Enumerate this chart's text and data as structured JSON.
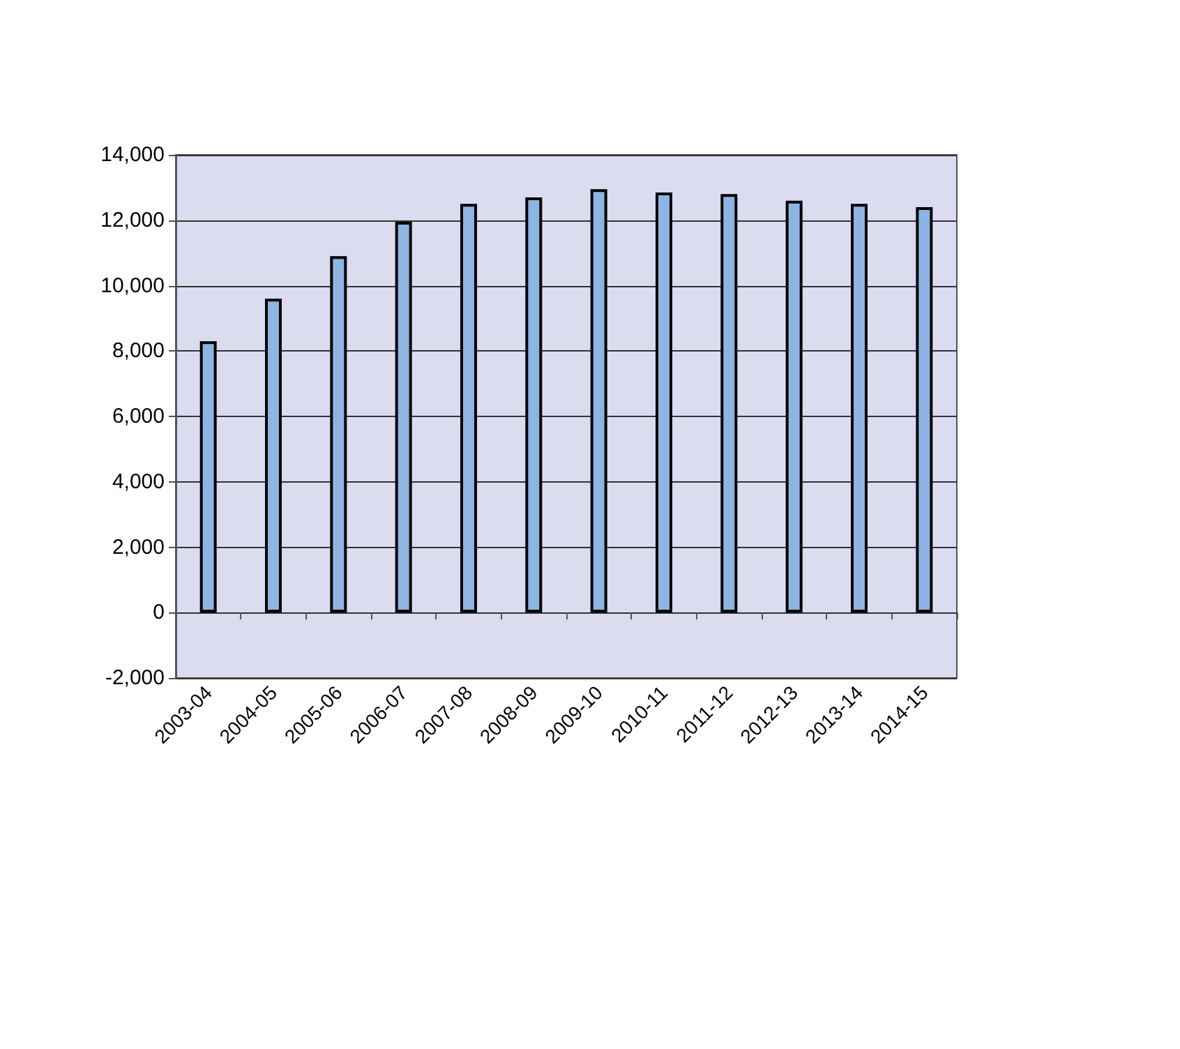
{
  "chart_data": {
    "type": "bar",
    "categories": [
      "2003-04",
      "2004-05",
      "2005-06",
      "2006-07",
      "2007-08",
      "2008-09",
      "2009-10",
      "2010-11",
      "2011-12",
      "2012-13",
      "2013-14",
      "2014-15"
    ],
    "values": [
      8300,
      9600,
      10900,
      11950,
      12500,
      12700,
      12950,
      12850,
      12800,
      12600,
      12500,
      12400
    ],
    "color": "#8eb4e3",
    "ylim": [
      -2000,
      14000
    ],
    "yticks": [
      {
        "value": -2000,
        "label": "-2,000"
      },
      0,
      {
        "value": 2000,
        "label": "2,000"
      },
      {
        "value": 4000,
        "label": "4,000"
      },
      {
        "value": 6000,
        "label": "6,000"
      },
      {
        "value": 8000,
        "label": "8,000"
      },
      {
        "value": 10000,
        "label": "10,000"
      },
      {
        "value": 12000,
        "label": "12,000"
      },
      {
        "value": 14000,
        "label": "14,000"
      }
    ],
    "grid": "y"
  }
}
